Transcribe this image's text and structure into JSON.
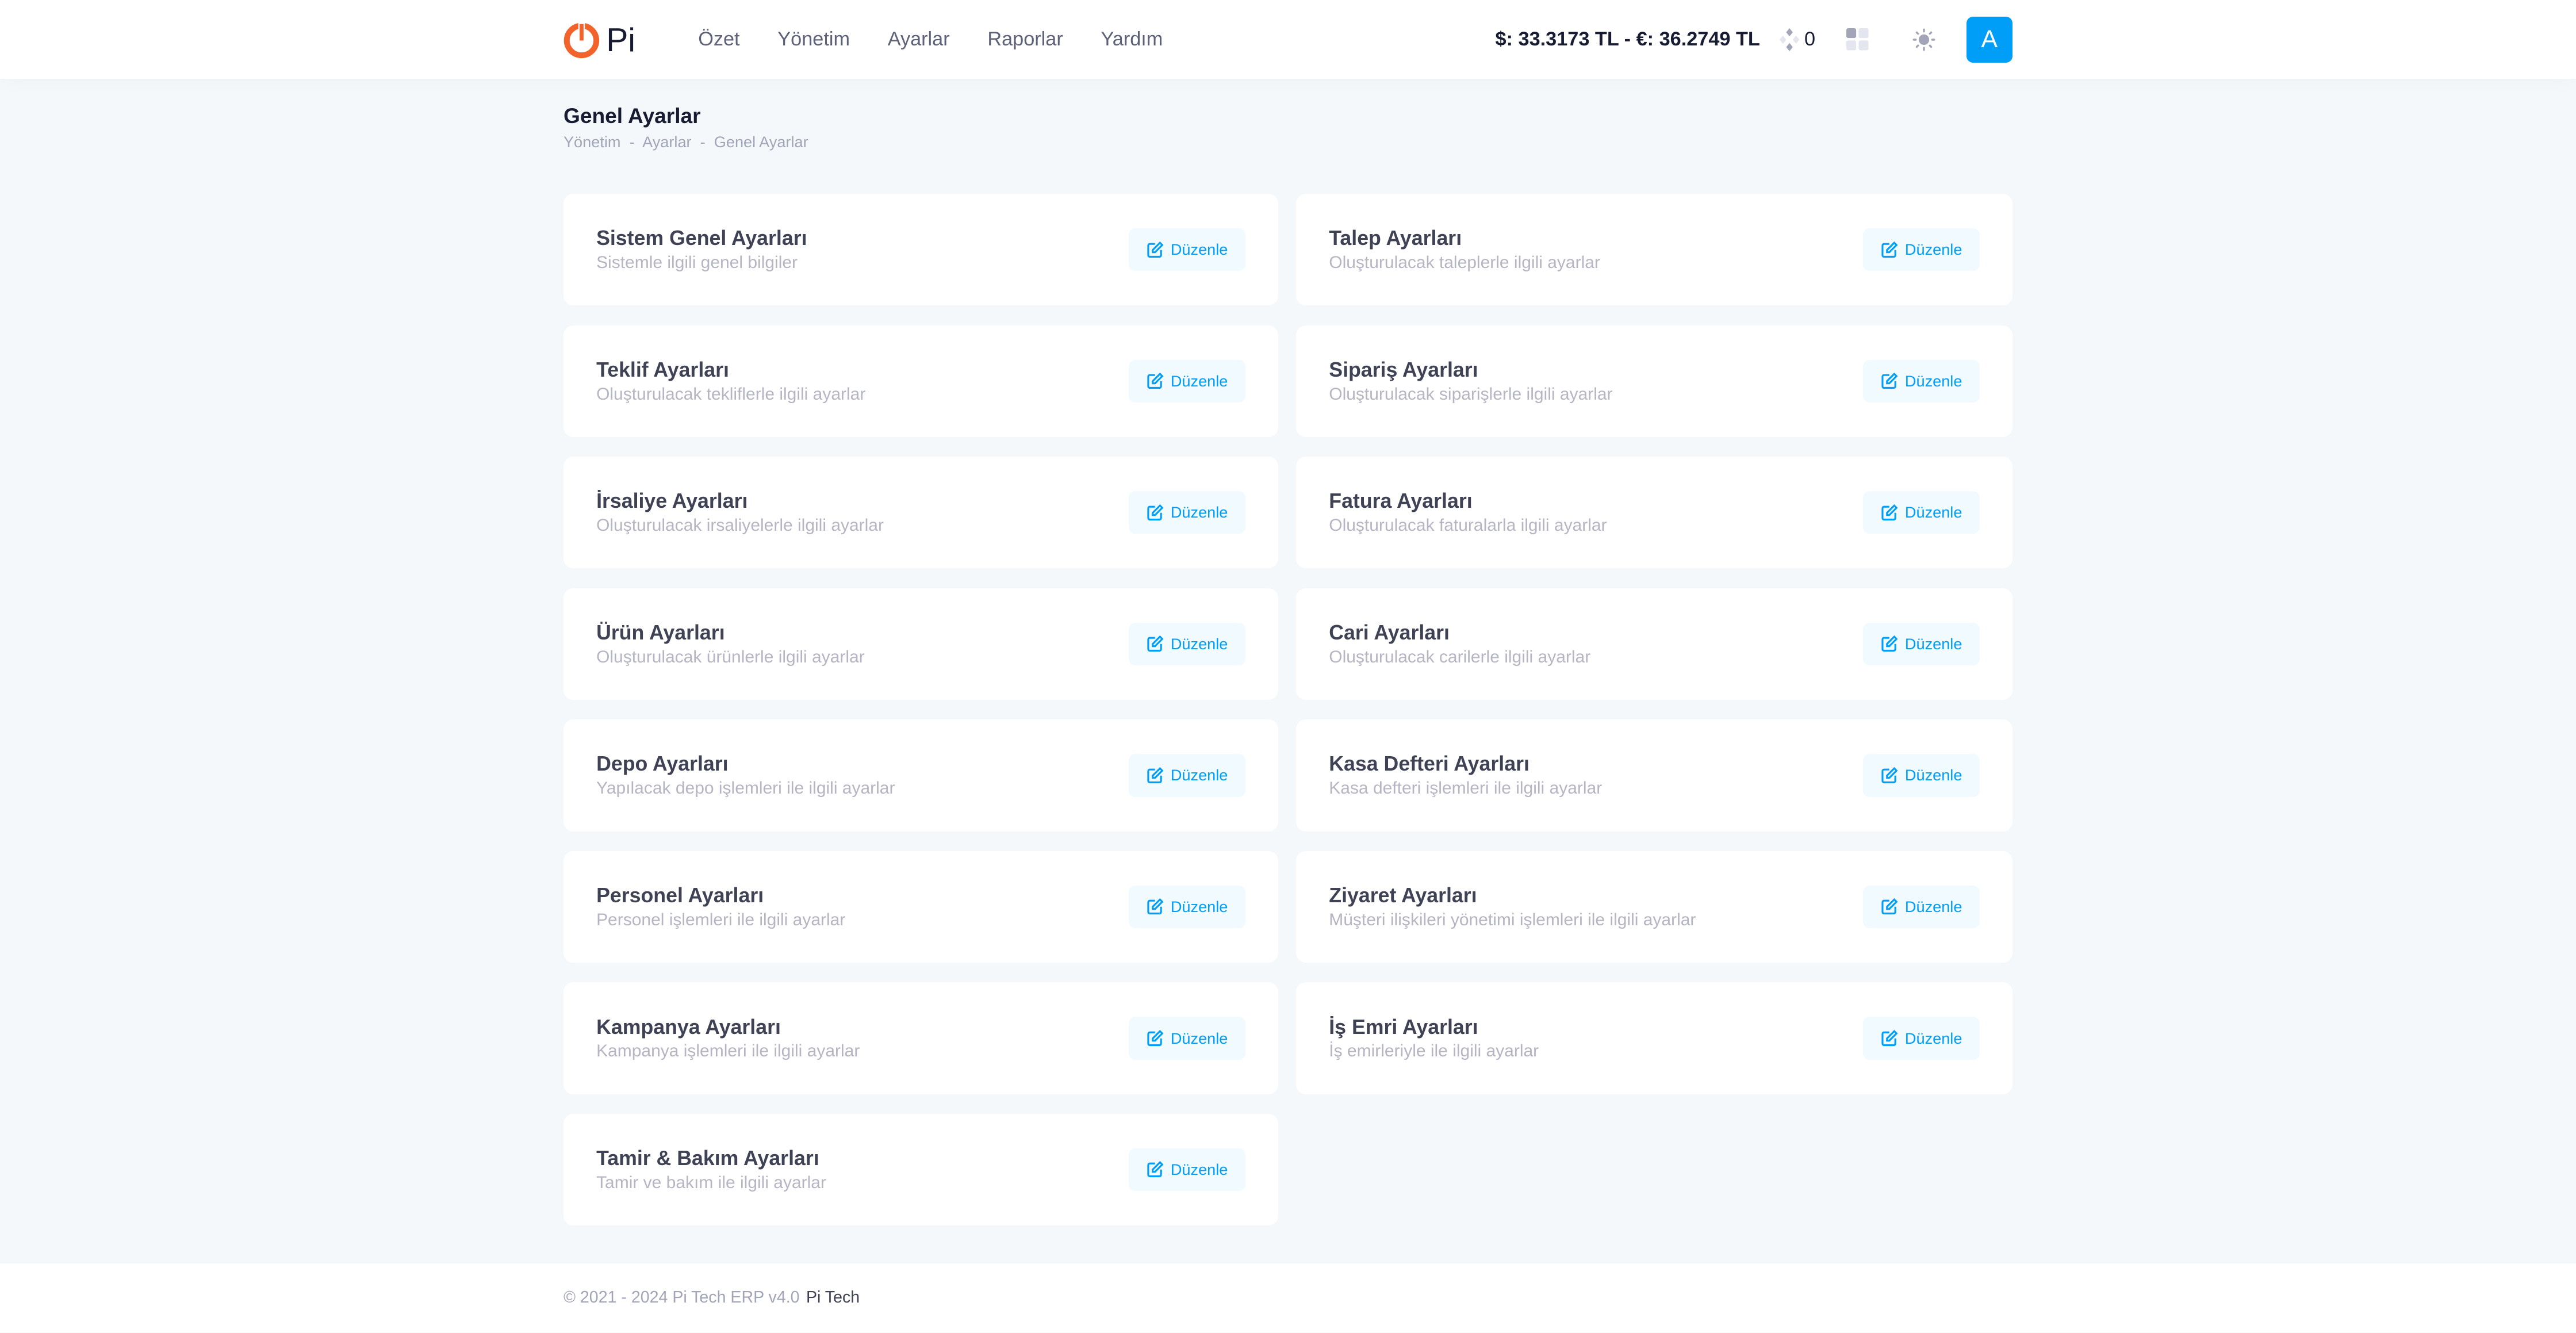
{
  "header": {
    "logo_text": "Pi",
    "brand_color": "#f1632b",
    "nav": [
      "Özet",
      "Yönetim",
      "Ayarlar",
      "Raporlar",
      "Yardım"
    ],
    "rates": "$: 33.3173 TL - €: 36.2749 TL",
    "notification_count": "0",
    "avatar_letter": "A",
    "accent": "#009ef7"
  },
  "page": {
    "title": "Genel Ayarlar",
    "breadcrumb": [
      "Yönetim",
      "Ayarlar",
      "Genel Ayarlar"
    ]
  },
  "cards": [
    {
      "title": "Sistem Genel Ayarları",
      "subtitle": "Sistemle ilgili genel bilgiler"
    },
    {
      "title": "Talep Ayarları",
      "subtitle": "Oluşturulacak taleplerle ilgili ayarlar"
    },
    {
      "title": "Teklif Ayarları",
      "subtitle": "Oluşturulacak tekliflerle ilgili ayarlar"
    },
    {
      "title": "Sipariş Ayarları",
      "subtitle": "Oluşturulacak siparişlerle ilgili ayarlar"
    },
    {
      "title": "İrsaliye Ayarları",
      "subtitle": "Oluşturulacak irsaliyelerle ilgili ayarlar"
    },
    {
      "title": "Fatura Ayarları",
      "subtitle": "Oluşturulacak faturalarla ilgili ayarlar"
    },
    {
      "title": "Ürün Ayarları",
      "subtitle": "Oluşturulacak ürünlerle ilgili ayarlar"
    },
    {
      "title": "Cari Ayarları",
      "subtitle": "Oluşturulacak carilerle ilgili ayarlar"
    },
    {
      "title": "Depo Ayarları",
      "subtitle": "Yapılacak depo işlemleri ile ilgili ayarlar"
    },
    {
      "title": "Kasa Defteri Ayarları",
      "subtitle": "Kasa defteri işlemleri ile ilgili ayarlar"
    },
    {
      "title": "Personel Ayarları",
      "subtitle": "Personel işlemleri ile ilgili ayarlar"
    },
    {
      "title": "Ziyaret Ayarları",
      "subtitle": "Müşteri ilişkileri yönetimi işlemleri ile ilgili ayarlar"
    },
    {
      "title": "Kampanya Ayarları",
      "subtitle": "Kampanya işlemleri ile ilgili ayarlar"
    },
    {
      "title": "İş Emri Ayarları",
      "subtitle": "İş emirleriyle ile ilgili ayarlar"
    },
    {
      "title": "Tamir & Bakım Ayarları",
      "subtitle": "Tamir ve bakım ile ilgili ayarlar"
    }
  ],
  "edit_label": "Düzenle",
  "footer": {
    "copyright": "© 2021 - 2024 Pi Tech ERP v4.0",
    "link": "Pi Tech"
  }
}
